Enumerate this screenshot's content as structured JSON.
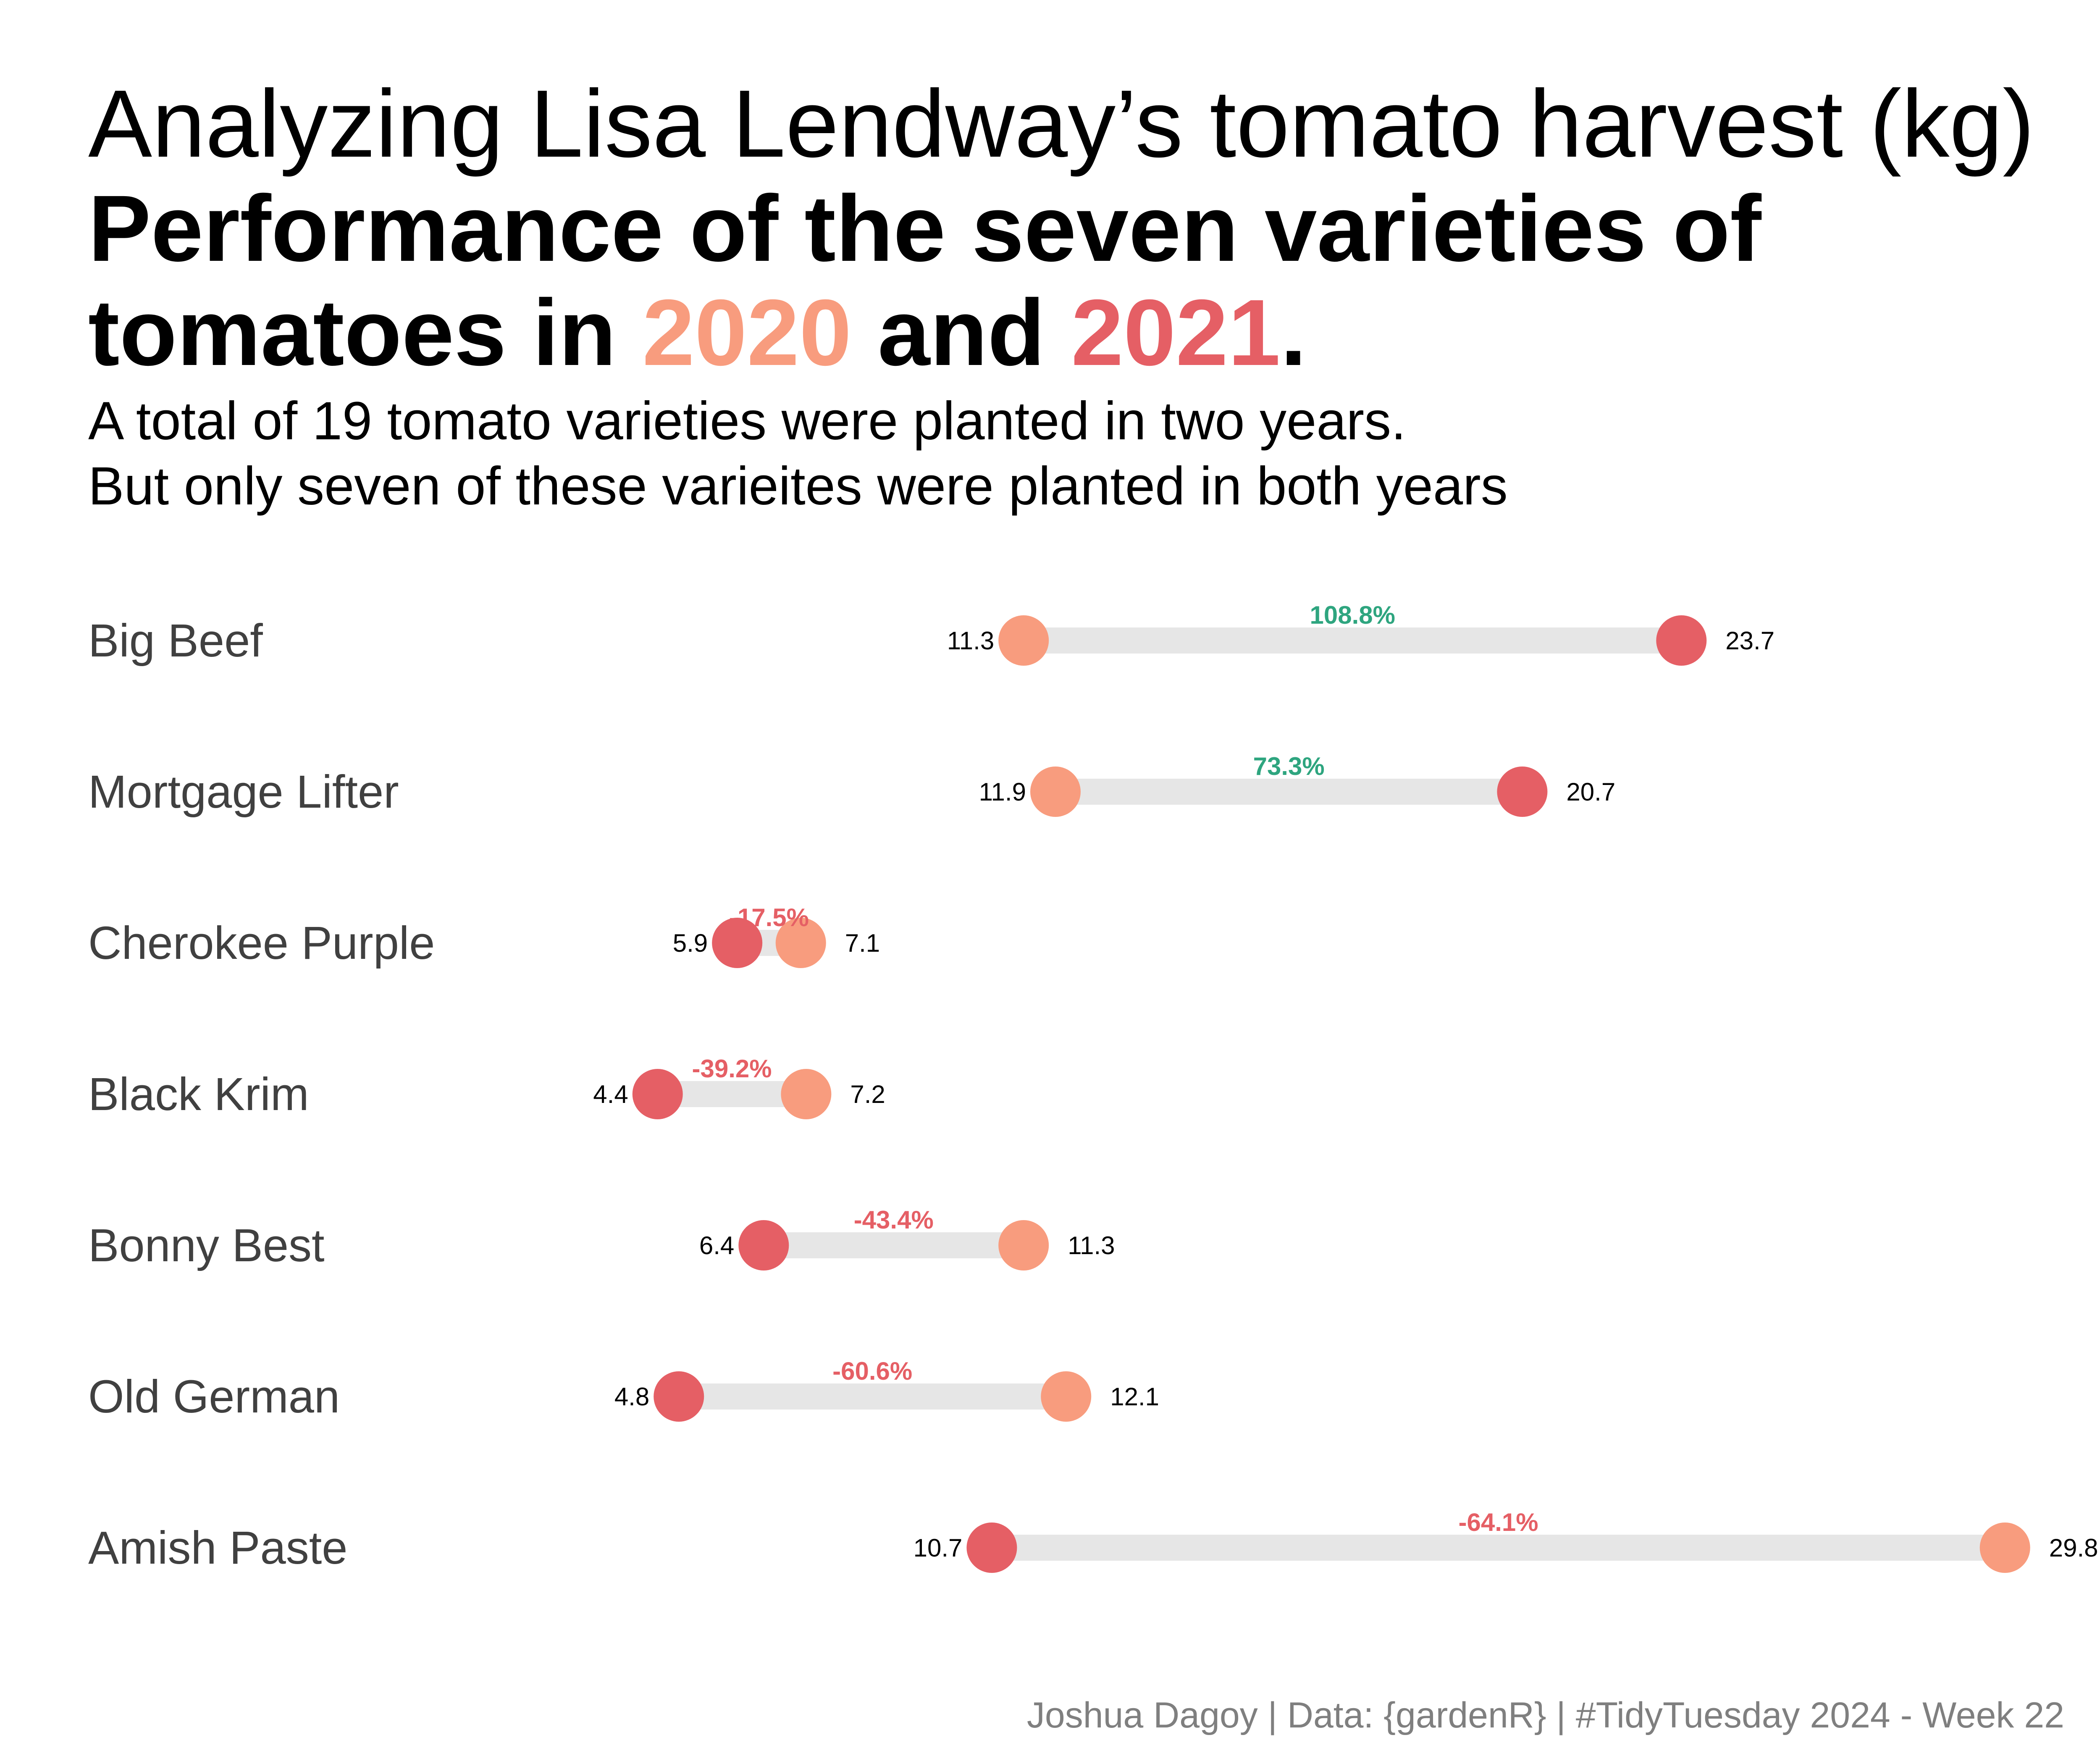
{
  "title": {
    "line1": "Analyzing Lisa Lendway’s tomato harvest (kg)",
    "bold_part1": "Performance of the seven varieties of tomatoes in ",
    "year_2020": "2020",
    "bold_and": " and ",
    "year_2021": "2021",
    "bold_end": "."
  },
  "subtitle": {
    "line1": "A total of 19 tomato varieties were planted in two years.",
    "line2": "But only seven of these varieites were planted in both years"
  },
  "caption": "Joshua Dagoy | Data: {gardenR} | #TidyTuesday 2024 - Week 22",
  "colors": {
    "year_2020": "#F89C7E",
    "year_2021": "#E55F65",
    "increase": "#2EA57F",
    "decrease": "#E55F65",
    "segment": "#E6E6E6",
    "category_label": "#404040"
  },
  "chart_data": {
    "type": "dumbbell",
    "series": [
      {
        "name": "2020"
      },
      {
        "name": "2021"
      }
    ],
    "xlim": [
      0,
      31
    ],
    "unit": "kg",
    "categories": [
      "Big Beef",
      "Mortgage Lifter",
      "Cherokee Purple",
      "Black Krim",
      "Bonny Best",
      "Old German",
      "Amish Paste"
    ],
    "rows": [
      {
        "variety": "Big Beef",
        "v2020": 11.3,
        "v2021": 23.7,
        "label_2020": "11.3",
        "label_2021": "23.7",
        "change": "108.8%",
        "direction": "increase"
      },
      {
        "variety": "Mortgage Lifter",
        "v2020": 11.9,
        "v2021": 20.7,
        "label_2020": "11.9",
        "label_2021": "20.7",
        "change": "73.3%",
        "direction": "increase"
      },
      {
        "variety": "Cherokee Purple",
        "v2020": 7.1,
        "v2021": 5.9,
        "label_2020": "7.1",
        "label_2021": "5.9",
        "change": "-17.5%",
        "direction": "decrease"
      },
      {
        "variety": "Black Krim",
        "v2020": 7.2,
        "v2021": 4.4,
        "label_2020": "7.2",
        "label_2021": "4.4",
        "change": "-39.2%",
        "direction": "decrease"
      },
      {
        "variety": "Bonny Best",
        "v2020": 11.3,
        "v2021": 6.4,
        "label_2020": "11.3",
        "label_2021": "6.4",
        "change": "-43.4%",
        "direction": "decrease"
      },
      {
        "variety": "Old German",
        "v2020": 12.1,
        "v2021": 4.8,
        "label_2020": "12.1",
        "label_2021": "4.8",
        "change": "-60.6%",
        "direction": "decrease"
      },
      {
        "variety": "Amish Paste",
        "v2020": 29.8,
        "v2021": 10.7,
        "label_2020": "29.8",
        "label_2021": "10.7",
        "change": "-64.1%",
        "direction": "decrease"
      }
    ]
  }
}
